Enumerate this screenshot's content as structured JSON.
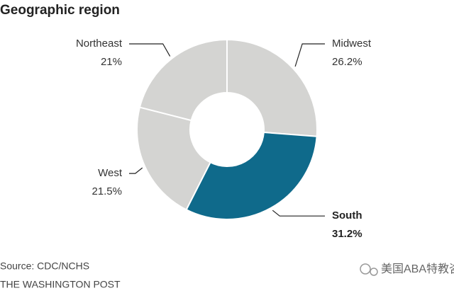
{
  "chart_data": {
    "type": "donut",
    "title": "Geographic region",
    "categories": [
      "Midwest",
      "South",
      "West",
      "Northeast"
    ],
    "values": [
      26.2,
      31.2,
      21.5,
      21
    ],
    "value_labels": [
      "26.2%",
      "31.2%",
      "21.5%",
      "21%"
    ],
    "colors": [
      "#d4d4d2",
      "#0f6a8b",
      "#d4d4d2",
      "#d4d4d2"
    ],
    "source": "Source: CDC/NCHS",
    "credit": "THE WASHINGTON POST",
    "watermark": "美国ABA特教咨询"
  }
}
